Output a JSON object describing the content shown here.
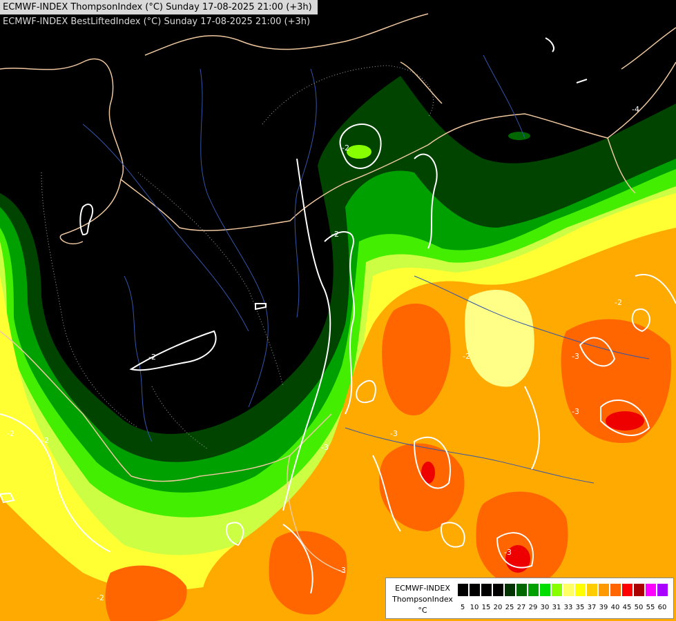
{
  "header": {
    "line1": "ECMWF-INDEX ThompsonIndex (°C) Sunday 17-08-2025 21:00 (+3h)",
    "line2": "ECMWF-INDEX BestLiftedIndex (°C) Sunday 17-08-2025 21:00 (+3h)"
  },
  "legend": {
    "title": "ECMWF-INDEX",
    "param": "ThompsonIndex",
    "unit": "°C",
    "ticks": [
      "5",
      "10",
      "15",
      "20",
      "25",
      "27",
      "29",
      "30",
      "31",
      "33",
      "35",
      "37",
      "39",
      "40",
      "45",
      "50",
      "55",
      "60"
    ],
    "colors": [
      "#000000",
      "#000000",
      "#000000",
      "#000000",
      "#003300",
      "#006600",
      "#00a000",
      "#00dd00",
      "#88ff00",
      "#ffff66",
      "#ffff00",
      "#ffcc00",
      "#ff9900",
      "#ff6600",
      "#ff0000",
      "#aa0000",
      "#ff00ff",
      "#aa00ff",
      "#7700ff",
      "#0000ff"
    ]
  },
  "contour_labels": [
    "-2",
    "-2",
    "-2",
    "-3",
    "-3",
    "-2",
    "-2",
    "-3",
    "-2",
    "-3",
    "-3",
    "-4",
    "-2",
    "-2",
    "-3"
  ],
  "map_colors": {
    "background": "#000000",
    "borders": "#f0c8a0",
    "rivers": "#3355aa",
    "contours": "#ffffff"
  }
}
